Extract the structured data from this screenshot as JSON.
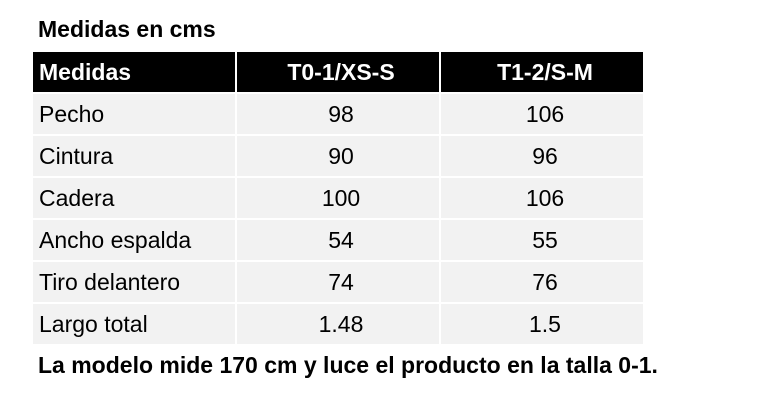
{
  "title": "Medidas en cms",
  "table": {
    "headers": [
      "Medidas",
      "T0-1/XS-S",
      "T1-2/S-M"
    ],
    "rows": [
      [
        "Pecho",
        "98",
        "106"
      ],
      [
        "Cintura",
        "90",
        "96"
      ],
      [
        "Cadera",
        "100",
        "106"
      ],
      [
        "Ancho espalda",
        "54",
        "55"
      ],
      [
        "Tiro delantero",
        "74",
        "76"
      ],
      [
        "Largo total",
        "1.48",
        "1.5"
      ]
    ]
  },
  "note": "La modelo mide 170 cm y luce el producto en la talla 0-1.",
  "colors": {
    "header_bg": "#000000",
    "header_text": "#ffffff",
    "cell_bg": "#f2f2f2"
  }
}
